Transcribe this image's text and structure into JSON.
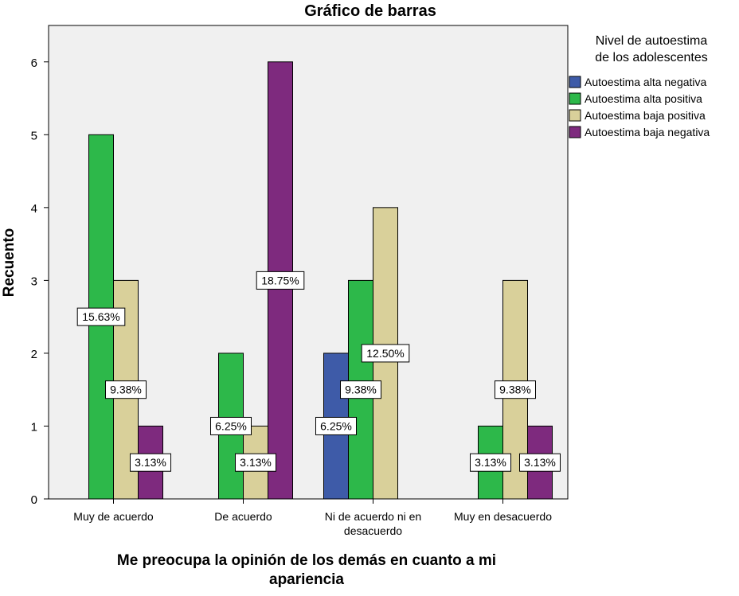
{
  "chart_data": {
    "type": "bar",
    "title": "Gráfico de barras",
    "xlabel": [
      "Me preocupa la opinión de los demás en cuanto a mi",
      "apariencia"
    ],
    "ylabel": "Recuento",
    "ylim": [
      0,
      6.5
    ],
    "yticks": [
      "0",
      "1",
      "2",
      "3",
      "4",
      "5",
      "6"
    ],
    "categories": [
      [
        "Muy de acuerdo"
      ],
      [
        "De acuerdo"
      ],
      [
        "Ni de acuerdo ni en",
        "desacuerdo"
      ],
      [
        "Muy en desacuerdo"
      ]
    ],
    "legend": {
      "title": [
        "Nivel de autoestima",
        "de los adolescentes"
      ],
      "position": "right"
    },
    "series": [
      {
        "name": "Autoestima alta negativa",
        "color": "#3E5BA8",
        "values": [
          0,
          0,
          2,
          0
        ],
        "labels": [
          "",
          "",
          "6.25%",
          ""
        ]
      },
      {
        "name": "Autoestima alta positiva",
        "color": "#2DB84A",
        "values": [
          5,
          2,
          3,
          1
        ],
        "labels": [
          "15.63%",
          "6.25%",
          "9.38%",
          "3.13%"
        ]
      },
      {
        "name": "Autoestima baja positiva",
        "color": "#D9D09A",
        "values": [
          3,
          1,
          4,
          3
        ],
        "labels": [
          "9.38%",
          "3.13%",
          "12.50%",
          "9.38%"
        ]
      },
      {
        "name": "Autoestima baja negativa",
        "color": "#7E2A7E",
        "values": [
          1,
          6,
          0,
          1
        ],
        "labels": [
          "3.13%",
          "18.75%",
          "",
          "3.13%"
        ]
      }
    ],
    "grid": false,
    "plot_background": "#F0F0F0"
  }
}
